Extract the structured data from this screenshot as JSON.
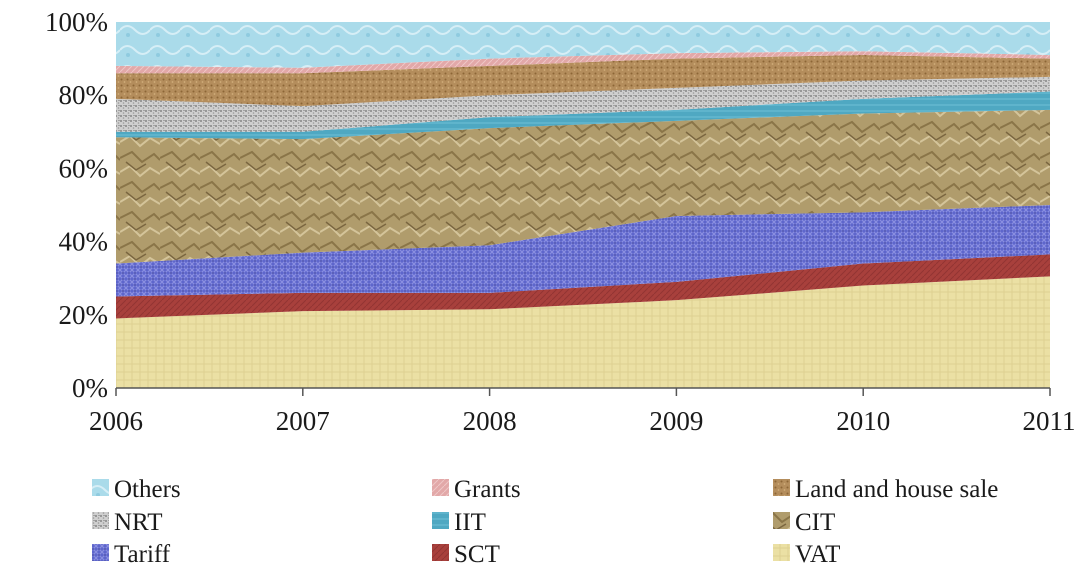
{
  "chart_data": {
    "type": "area",
    "stacked": true,
    "percent": true,
    "title": "",
    "xlabel": "",
    "ylabel": "",
    "x": [
      "2006",
      "2007",
      "2008",
      "2009",
      "2010",
      "2011"
    ],
    "ylim": [
      0,
      100
    ],
    "y_ticks": [
      "0%",
      "20%",
      "40%",
      "60%",
      "80%",
      "100%"
    ],
    "grid": false,
    "legend_position": "bottom",
    "series": [
      {
        "name": "VAT",
        "values": [
          19,
          21,
          21.5,
          24,
          28,
          30.5
        ],
        "color": "#e8dc9c"
      },
      {
        "name": "SCT",
        "values": [
          6,
          5,
          4.5,
          5,
          6,
          6
        ],
        "color": "#a8403c"
      },
      {
        "name": "Tariff",
        "values": [
          9,
          11,
          13,
          18,
          14,
          13.5
        ],
        "color": "#5a62c8"
      },
      {
        "name": "CIT",
        "values": [
          34.5,
          31,
          32,
          26,
          27,
          26
        ],
        "color": "#ac9868"
      },
      {
        "name": "IIT",
        "values": [
          1.5,
          2,
          3,
          3,
          4,
          5
        ],
        "color": "#4fa8c2"
      },
      {
        "name": "NRT",
        "values": [
          9,
          7,
          6,
          6,
          5,
          4
        ],
        "color": "#c8c8c8"
      },
      {
        "name": "Land and house sale",
        "values": [
          7,
          9,
          8,
          8,
          7,
          5
        ],
        "color": "#b08a5a"
      },
      {
        "name": "Grants",
        "values": [
          2,
          1.5,
          2,
          1.5,
          1,
          1
        ],
        "color": "#e0a4a4"
      },
      {
        "name": "Others",
        "values": [
          12,
          12.5,
          10,
          8.5,
          8,
          9
        ],
        "color": "#a8dcec"
      }
    ],
    "legend_order": [
      "Others",
      "Grants",
      "Land and house sale",
      "NRT",
      "IIT",
      "CIT",
      "Tariff",
      "SCT",
      "VAT"
    ]
  }
}
